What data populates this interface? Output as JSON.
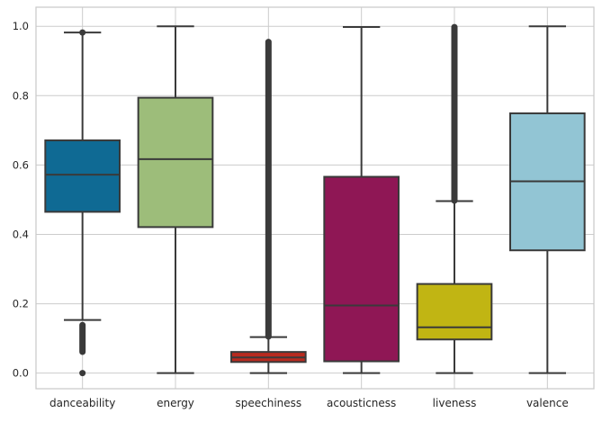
{
  "chart_data": {
    "type": "box",
    "ylim": [
      -0.045,
      1.055
    ],
    "yticks": [
      0.0,
      0.2,
      0.4,
      0.6,
      0.8,
      1.0
    ],
    "ytick_labels": [
      "0.0",
      "0.2",
      "0.4",
      "0.6",
      "0.8",
      "1.0"
    ],
    "grid": true,
    "line_color": "#3a3a3a",
    "grid_color": "#cccccc",
    "axes_color": "#c8c8c8",
    "categories": [
      "danceability",
      "energy",
      "speechiness",
      "acousticness",
      "liveness",
      "valence"
    ],
    "boxes": [
      {
        "label": "danceability",
        "color": "#0f6a94",
        "whisker_low": 0.153,
        "q1": 0.465,
        "median": 0.572,
        "q3": 0.671,
        "whisker_high": 0.982,
        "outliers_low": [
          0.0,
          0.06,
          0.14
        ],
        "outliers_high": [
          0.982
        ]
      },
      {
        "label": "energy",
        "color": "#9dbd7a",
        "whisker_low": 0.0,
        "q1": 0.421,
        "median": 0.617,
        "q3": 0.794,
        "whisker_high": 1.0,
        "outliers_low": [],
        "outliers_high": []
      },
      {
        "label": "speechiness",
        "color": "#b82a1e",
        "whisker_low": 0.0,
        "q1": 0.032,
        "median": 0.045,
        "q3": 0.061,
        "whisker_high": 0.104,
        "outliers_low": [],
        "outliers_high": [
          0.104,
          0.956
        ]
      },
      {
        "label": "acousticness",
        "color": "#8f1755",
        "whisker_low": 0.0,
        "q1": 0.034,
        "median": 0.195,
        "q3": 0.566,
        "whisker_high": 0.998,
        "outliers_low": [],
        "outliers_high": []
      },
      {
        "label": "liveness",
        "color": "#c1b513",
        "whisker_low": 0.0,
        "q1": 0.097,
        "median": 0.132,
        "q3": 0.257,
        "whisker_high": 0.496,
        "outliers_low": [],
        "outliers_high": [
          0.496,
          0.999
        ]
      },
      {
        "label": "valence",
        "color": "#92c5d4",
        "whisker_low": 0.0,
        "q1": 0.354,
        "median": 0.553,
        "q3": 0.749,
        "whisker_high": 1.0,
        "outliers_low": [],
        "outliers_high": []
      }
    ]
  }
}
